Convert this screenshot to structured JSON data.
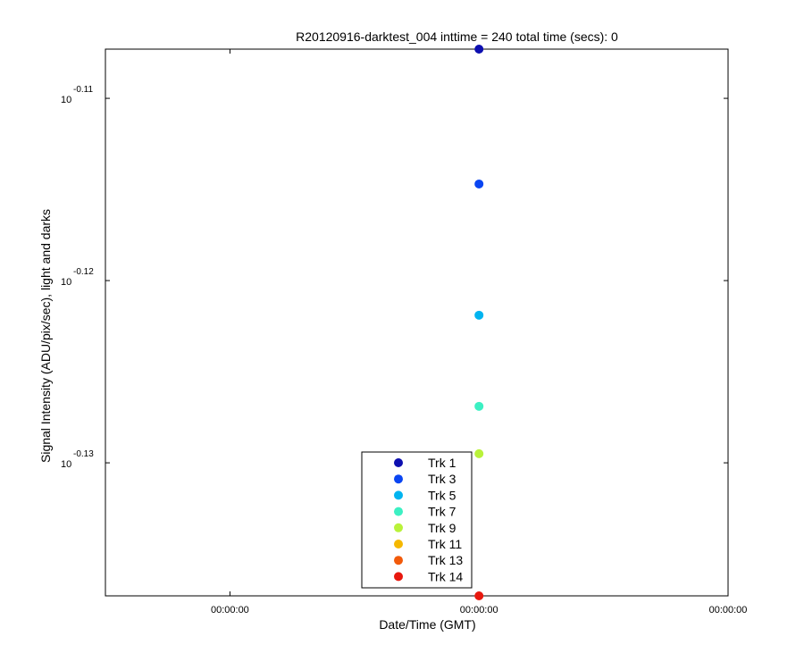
{
  "chart_data": {
    "type": "scatter",
    "title": "R20120916-darktest_004 inttime = 240 total time (secs): 0",
    "xlabel": "Date/Time (GMT)",
    "ylabel": "Signal Intensity (ADU/pix/sec), light and darks",
    "y_scale": "log",
    "y_exponent_range": [
      -0.1373,
      -0.1073
    ],
    "y_ticks": [
      {
        "exponent": -0.11,
        "base": "10",
        "sup": "-0.11"
      },
      {
        "exponent": -0.12,
        "base": "10",
        "sup": "-0.12"
      },
      {
        "exponent": -0.13,
        "base": "10",
        "sup": "-0.13"
      }
    ],
    "x_tick_labels": [
      "00:00:00",
      "00:00:00",
      "00:00:00"
    ],
    "x_tick_positions": [
      -0.5,
      0,
      0.5
    ],
    "x_range": [
      -0.75,
      0.5
    ],
    "grid": false,
    "legend_position": "bottom-center",
    "series": [
      {
        "name": "Trk 1",
        "color": "#0d0fb0",
        "x": 0,
        "y_exponent": -0.1073,
        "y": 0.7812
      },
      {
        "name": "Trk 3",
        "color": "#0a45f2",
        "x": 0,
        "y_exponent": -0.1147,
        "y": 0.768
      },
      {
        "name": "Trk 5",
        "color": "#00b4f0",
        "x": 0,
        "y_exponent": -0.1219,
        "y": 0.7553
      },
      {
        "name": "Trk 7",
        "color": "#3cf0c3",
        "x": 0,
        "y_exponent": -0.1269,
        "y": 0.7466
      },
      {
        "name": "Trk 9",
        "color": "#b9f23a",
        "x": 0,
        "y_exponent": -0.1295,
        "y": 0.7422
      },
      {
        "name": "Trk 11",
        "color": "#f5b800",
        "x": 0,
        "y_exponent": null,
        "y": null
      },
      {
        "name": "Trk 13",
        "color": "#f25a0a",
        "x": 0,
        "y_exponent": null,
        "y": null
      },
      {
        "name": "Trk 14",
        "color": "#e8180e",
        "x": 0,
        "y_exponent": -0.1373,
        "y": 0.7289
      }
    ]
  }
}
